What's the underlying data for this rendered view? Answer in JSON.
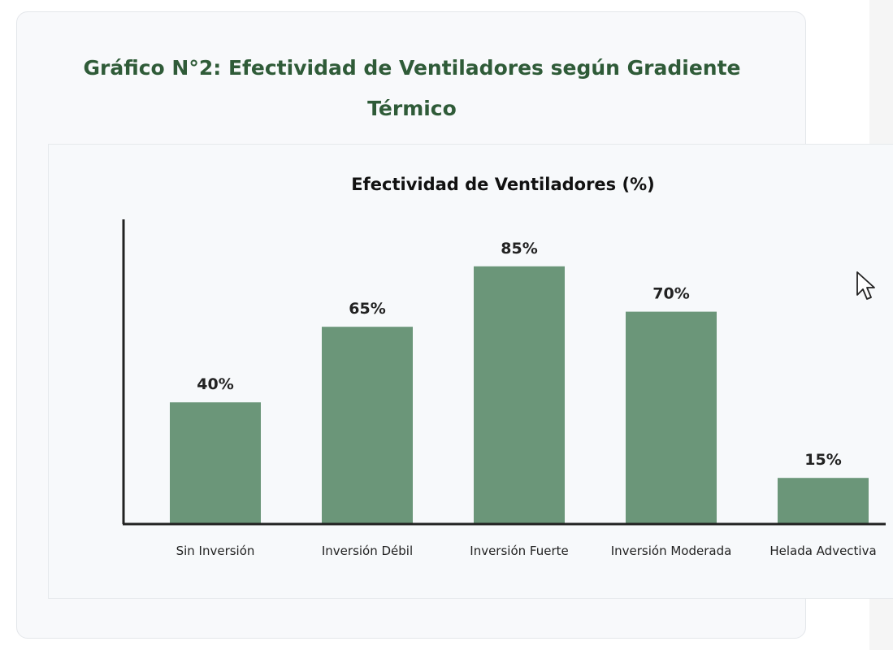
{
  "card": {
    "title": "Gráfico N°2: Efectividad de Ventiladores según Gradiente Térmico"
  },
  "chart_data": {
    "type": "bar",
    "title": "Efectividad de Ventiladores (%)",
    "categories": [
      "Sin Inversión",
      "Inversión Débil",
      "Inversión Fuerte",
      "Inversión Moderada",
      "Helada Advectiva"
    ],
    "values": [
      40,
      65,
      85,
      70,
      15
    ],
    "value_labels": [
      "40%",
      "65%",
      "85%",
      "70%",
      "15%"
    ],
    "xlabel": "",
    "ylabel": "",
    "ylim": [
      0,
      100
    ],
    "grid": false,
    "bar_color": "#6b9679",
    "axis_color": "#222222"
  },
  "icons": {
    "cursor": "mouse-pointer-icon"
  }
}
